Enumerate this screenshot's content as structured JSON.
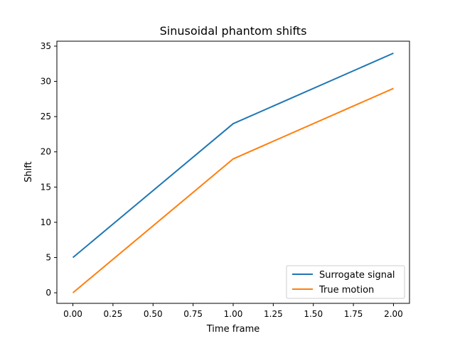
{
  "chart_data": {
    "type": "line",
    "title": "Sinusoidal phantom shifts",
    "xlabel": "Time frame",
    "ylabel": "Shift",
    "xlim": [
      -0.1,
      2.1
    ],
    "ylim": [
      -1.5,
      35.7
    ],
    "xticks": [
      0.0,
      0.25,
      0.5,
      0.75,
      1.0,
      1.25,
      1.5,
      1.75,
      2.0
    ],
    "xtick_labels": [
      "0.00",
      "0.25",
      "0.50",
      "0.75",
      "1.00",
      "1.25",
      "1.50",
      "1.75",
      "2.00"
    ],
    "yticks": [
      0,
      5,
      10,
      15,
      20,
      25,
      30,
      35
    ],
    "ytick_labels": [
      "0",
      "5",
      "10",
      "15",
      "20",
      "25",
      "30",
      "35"
    ],
    "x": [
      0,
      1,
      2
    ],
    "series": [
      {
        "name": "Surrogate signal",
        "values": [
          5,
          24,
          34
        ],
        "color": "#1f77b4"
      },
      {
        "name": "True motion",
        "values": [
          0,
          19,
          29
        ],
        "color": "#ff7f0e"
      }
    ],
    "grid": false,
    "legend_position": "lower right"
  }
}
